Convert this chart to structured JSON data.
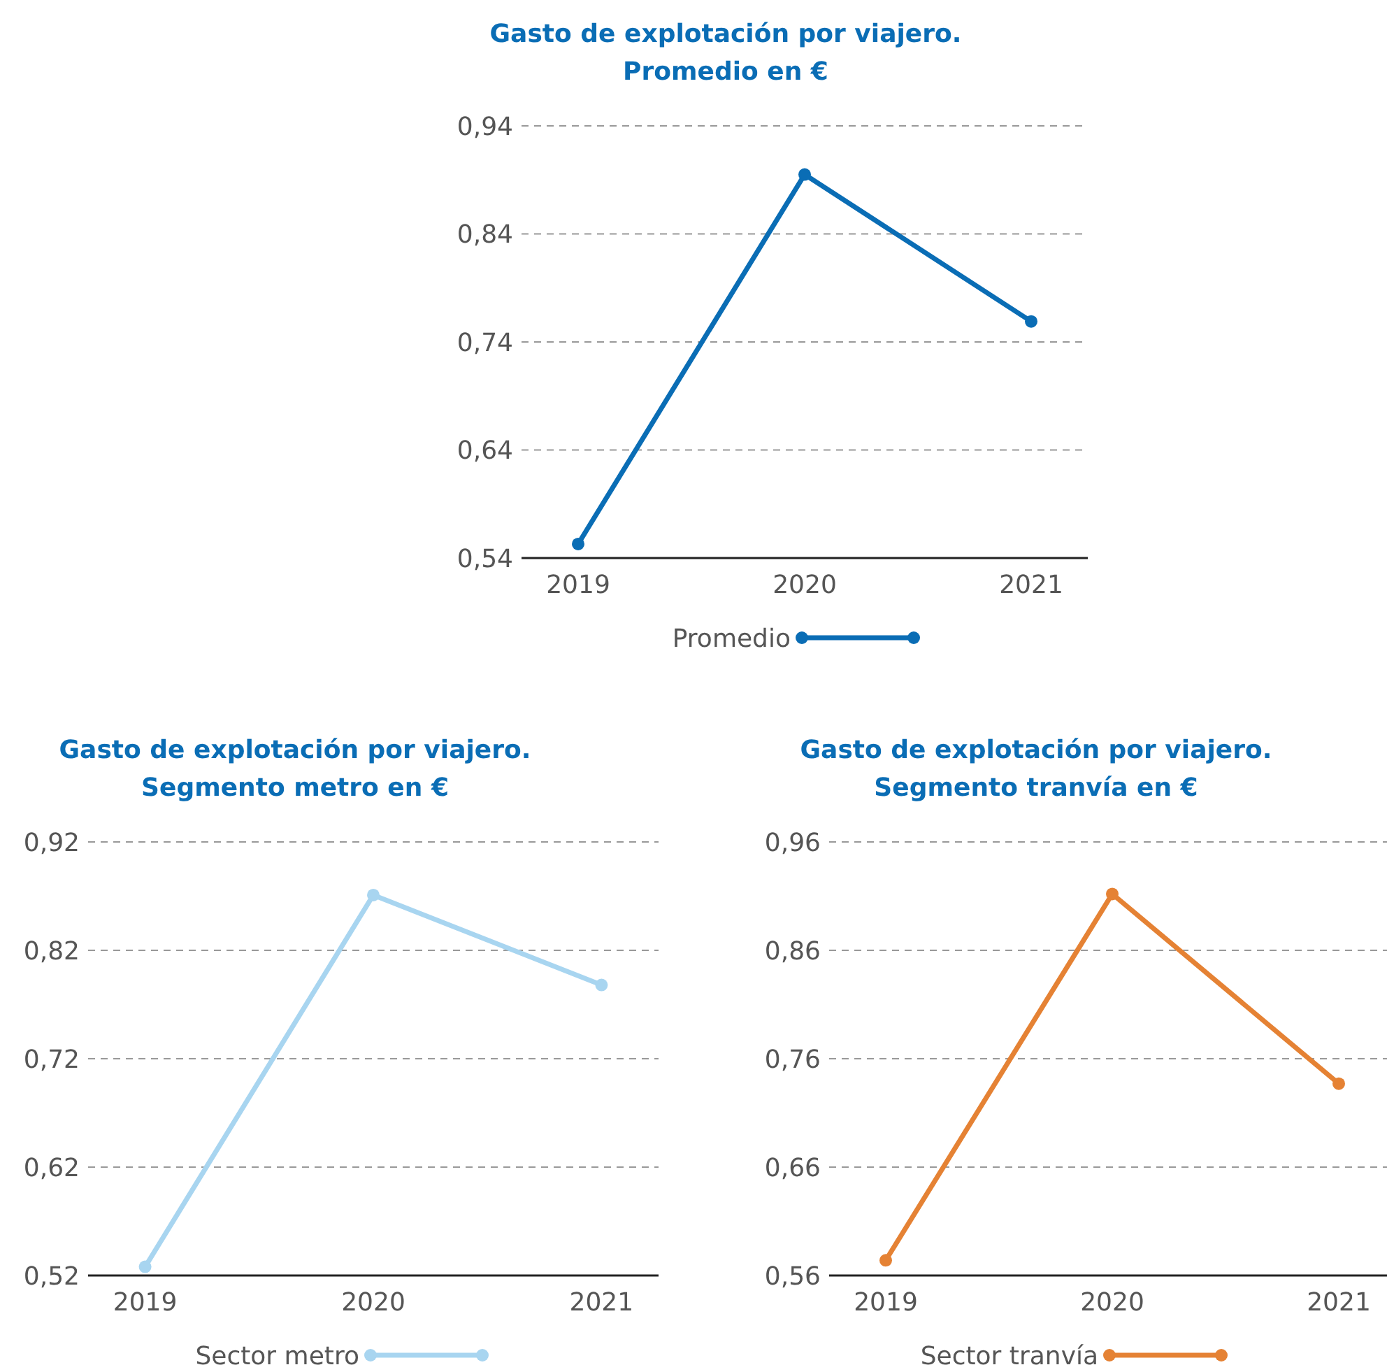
{
  "chart_data": [
    {
      "type": "line",
      "title": "Gasto de explotación por viajero.\nPromedio en €",
      "categories": [
        "2019",
        "2020",
        "2021"
      ],
      "series": [
        {
          "name": "Promedio",
          "color": "#0a6db5",
          "values": [
            0.553,
            0.895,
            0.759
          ]
        }
      ],
      "ylim": [
        0.54,
        0.94
      ],
      "yticks": [
        {
          "value": 0.54,
          "label": "0,54"
        },
        {
          "value": 0.64,
          "label": "0,64"
        },
        {
          "value": 0.74,
          "label": "0,74"
        },
        {
          "value": 0.84,
          "label": "0,84"
        },
        {
          "value": 0.94,
          "label": "0,94"
        }
      ],
      "grid": "y",
      "legend": "bottom",
      "marker": "circle",
      "line_style": "solid"
    },
    {
      "type": "line",
      "title": "Gasto de explotación por viajero.\nSegmento metro en €",
      "categories": [
        "2019",
        "2020",
        "2021"
      ],
      "series": [
        {
          "name": "Sector metro",
          "color": "#a8d5f0",
          "values": [
            0.528,
            0.871,
            0.788
          ]
        }
      ],
      "ylim": [
        0.52,
        0.92
      ],
      "yticks": [
        {
          "value": 0.52,
          "label": "0,52"
        },
        {
          "value": 0.62,
          "label": "0,62"
        },
        {
          "value": 0.72,
          "label": "0,72"
        },
        {
          "value": 0.82,
          "label": "0,82"
        },
        {
          "value": 0.92,
          "label": "0,92"
        }
      ],
      "grid": "y",
      "legend": "bottom",
      "marker": "circle",
      "line_style": "solid"
    },
    {
      "type": "line",
      "title": "Gasto de explotación por viajero.\nSegmento tranvía en €",
      "categories": [
        "2019",
        "2020",
        "2021"
      ],
      "series": [
        {
          "name": "Sector tranvía",
          "color": "#e58234",
          "values": [
            0.574,
            0.912,
            0.737
          ]
        }
      ],
      "ylim": [
        0.56,
        0.96
      ],
      "yticks": [
        {
          "value": 0.56,
          "label": "0,56"
        },
        {
          "value": 0.66,
          "label": "0,66"
        },
        {
          "value": 0.76,
          "label": "0,76"
        },
        {
          "value": 0.86,
          "label": "0,86"
        },
        {
          "value": 0.96,
          "label": "0,96"
        }
      ],
      "grid": "y",
      "legend": "bottom",
      "marker": "circle",
      "line_style": "solid"
    }
  ]
}
